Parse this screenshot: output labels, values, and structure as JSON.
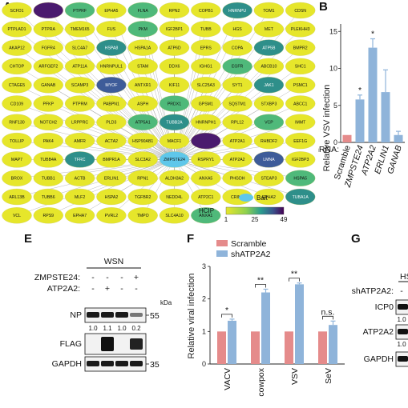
{
  "panels": {
    "a": "A",
    "b": "B",
    "e": "E",
    "f": "F",
    "g": "G"
  },
  "colors": {
    "node_yellow": "#e6e62b",
    "node_ltgreen": "#b5dc3a",
    "node_green": "#4fb97a",
    "node_teal": "#2e8f8a",
    "node_blue": "#3e5c99",
    "node_purple": "#4a1a6e",
    "bait": "#5fc7ea",
    "scramble_bar": "#e58b8b",
    "treat_bar": "#8fb4da"
  },
  "network": {
    "bait_label": "Bait",
    "bait_node": "ZMPSTE24",
    "colorbar_title": "HCIP",
    "colorbar_ticks": [
      "1",
      "25",
      "49"
    ],
    "rows": [
      [
        "SCFD1",
        "",
        "PTPRF",
        "EPHA5",
        "FLNA",
        "RPN2",
        "COPB1",
        "HNRNPU",
        "TOM1",
        "CDSN"
      ],
      [
        "PTPLAD1",
        "PTPRA",
        "TMEM165",
        "FUS",
        "PKM",
        "IGF2BP1",
        "TUBB",
        "HGS",
        "MET",
        "PLEKHH3"
      ],
      [
        "AKAP12",
        "FGFR4",
        "SLC4A7",
        "HSPA8",
        "HSPA1A",
        "ATP6D",
        "EPRS",
        "COPA",
        "ATP5B",
        "BMPR2"
      ],
      [
        "CHTOP",
        "ARFGEF2",
        "ATP11A",
        "HNRNPUL1",
        "STAM",
        "DDX6",
        "IGHG1",
        "EGFR",
        "ABCB10",
        "SHC1"
      ],
      [
        "CTAGE5",
        "GANAB",
        "SCAMP3",
        "MYOF",
        "ANTXR1",
        "KIF11",
        "SLC25A3",
        "SYT1",
        "JAK1",
        "PSMC1"
      ],
      [
        "CD109",
        "PFKP",
        "PTPRM",
        "PABPN1",
        "ASPH",
        "PRDX1",
        "GPSM1",
        "SQSTM1",
        "STXBP3",
        "ABCC1"
      ],
      [
        "RNF130",
        "NOTCH2",
        "LRPPRC",
        "PLD3",
        "ATP5A1",
        "TUBB2A",
        "HNRNPH1",
        "RPL12",
        "VCP",
        "IMMT"
      ],
      [
        "TOLLIP",
        "PAK4",
        "AMFR",
        "ACTA2",
        "HSP90AB1",
        "MACF1",
        "",
        "ATP2A1",
        "RHBDF2",
        "EEF1G"
      ],
      [
        "MAP7",
        "TUBB4A",
        "TFRC",
        "BMPR1A",
        "SLC3A2",
        "ZMPSTE24",
        "RSPRY1",
        "ATP2A2",
        "LMNA",
        "IGF2BP3"
      ],
      [
        "BROX",
        "TUBB1",
        "ACTB",
        "ERLIN1",
        "RPN1",
        "ALDH3A2",
        "ANXA5",
        "PHGDH",
        "STEAP3",
        "HSPA5"
      ],
      [
        "ARL13B",
        "TUBB6",
        "MLF2",
        "HSPA2",
        "TGFBR2",
        "NEDD4L",
        "ATP2C1",
        "CRIM1",
        "EPHA2",
        "TUBA1A"
      ],
      [
        "VCL",
        "RPS9",
        "EPHA7",
        "PVRL2",
        "TMPO",
        "SLC4A10",
        "ANXA1",
        "",
        "",
        ""
      ]
    ],
    "row_colors": [
      [
        "y",
        "p",
        "g",
        "y",
        "g",
        "y",
        "y",
        "t",
        "y",
        "y"
      ],
      [
        "y",
        "y",
        "y",
        "y",
        "g",
        "y",
        "y",
        "y",
        "y",
        "y"
      ],
      [
        "y",
        "y",
        "y",
        "t",
        "y",
        "y",
        "y",
        "y",
        "t",
        "y"
      ],
      [
        "y",
        "y",
        "y",
        "y",
        "y",
        "y",
        "y",
        "g",
        "y",
        "y"
      ],
      [
        "y",
        "y",
        "y",
        "b",
        "y",
        "y",
        "y",
        "y",
        "t",
        "y"
      ],
      [
        "y",
        "y",
        "y",
        "y",
        "y",
        "g",
        "y",
        "y",
        "y",
        "y"
      ],
      [
        "y",
        "y",
        "y",
        "y",
        "g",
        "t",
        "y",
        "y",
        "g",
        "y"
      ],
      [
        "y",
        "y",
        "y",
        "y",
        "y",
        "y",
        "p",
        "y",
        "y",
        "y"
      ],
      [
        "y",
        "y",
        "t",
        "y",
        "y",
        "bait",
        "y",
        "y",
        "b",
        "y"
      ],
      [
        "y",
        "y",
        "y",
        "y",
        "y",
        "y",
        "y",
        "y",
        "y",
        "g"
      ],
      [
        "y",
        "y",
        "y",
        "y",
        "y",
        "y",
        "y",
        "y",
        "y",
        "t"
      ],
      [
        "y",
        "y",
        "y",
        "y",
        "y",
        "y",
        "g",
        "",
        "",
        ""
      ]
    ]
  },
  "chart_b": {
    "type": "bar",
    "ylabel": "Relative VSV infection",
    "categories": [
      "Scramble",
      "ZMPSTE24",
      "ATP2A2",
      "ERLIN1",
      "GANAB"
    ],
    "values": [
      1.0,
      5.8,
      12.8,
      6.8,
      1.0
    ],
    "errors": [
      0.0,
      0.6,
      1.2,
      3.0,
      0.5
    ],
    "significance": [
      "",
      "*",
      "*",
      "",
      ""
    ],
    "ylim": [
      0,
      16
    ],
    "yticks": [
      "0",
      "5",
      "10",
      "15"
    ],
    "prefix": "shRNA:"
  },
  "chart_f": {
    "type": "bar",
    "ylabel": "Relative viral infection",
    "legend": [
      "Scramble",
      "shATP2A2"
    ],
    "categories": [
      "VACV",
      "cowpox",
      "VSV",
      "SeV"
    ],
    "series": [
      {
        "name": "Scramble",
        "values": [
          1.0,
          1.0,
          1.0,
          1.0
        ]
      },
      {
        "name": "shATP2A2",
        "values": [
          1.33,
          2.2,
          2.45,
          1.2
        ]
      }
    ],
    "errors": [
      0.05,
      0.1,
      0.04,
      0.12
    ],
    "significance": [
      "*",
      "**",
      "**",
      "n.s."
    ],
    "ylim": [
      0,
      3
    ],
    "yticks": [
      "0",
      "1",
      "2",
      "3"
    ]
  },
  "blot_e": {
    "title": "WSN",
    "row_labels": [
      "ZMPSTE24:",
      "ATP2A2:"
    ],
    "signs_top": [
      "-",
      "-",
      "-",
      "+"
    ],
    "signs_bottom": [
      "-",
      "+",
      "-",
      "-"
    ],
    "kda": "kDa",
    "bands": [
      "NP",
      "FLAG",
      "GAPDH"
    ],
    "markers": [
      "55",
      "35"
    ],
    "np_quant": [
      "1.0",
      "1.1",
      "1.0",
      "0.2"
    ]
  },
  "blot_g": {
    "title": "HS",
    "row_label": "shATP2A2:",
    "sign": "-",
    "bands": [
      "ICP0",
      "ATP2A2",
      "GAPDH"
    ],
    "quant1": "1.0",
    "quant2": "1.0"
  }
}
